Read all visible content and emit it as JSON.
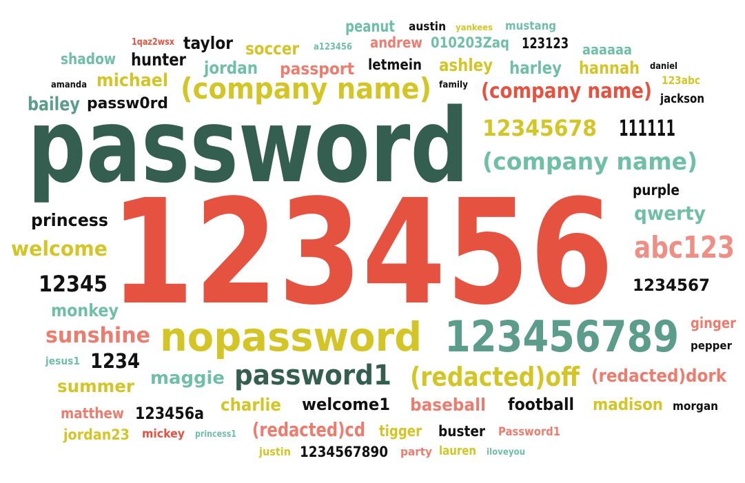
{
  "colors": {
    "dark_green": "#345e4f",
    "teal": "#5b9c8a",
    "mint": "#6fbfa5",
    "red": "#e55240",
    "salmon": "#ec7c6e",
    "pink": "#ee8e84",
    "yellow": "#d4c526",
    "black": "#111111"
  },
  "words": [
    {
      "text": "password",
      "color": "dark_green"
    },
    {
      "text": "123456",
      "color": "red"
    },
    {
      "text": "nopassword",
      "color": "yellow"
    },
    {
      "text": "123456789",
      "color": "teal"
    },
    {
      "text": "password1",
      "color": "dark_green"
    },
    {
      "text": "(company name)",
      "color": "yellow"
    },
    {
      "text": "(company name)",
      "color": "red"
    },
    {
      "text": "(company name)",
      "color": "mint"
    },
    {
      "text": "12345678",
      "color": "yellow"
    },
    {
      "text": "111111",
      "color": "black"
    },
    {
      "text": "abc123",
      "color": "pink"
    },
    {
      "text": "qwerty",
      "color": "mint"
    },
    {
      "text": "purple",
      "color": "black"
    },
    {
      "text": "1234567",
      "color": "black"
    },
    {
      "text": "princess",
      "color": "black"
    },
    {
      "text": "welcome",
      "color": "yellow"
    },
    {
      "text": "12345",
      "color": "black"
    },
    {
      "text": "monkey",
      "color": "mint"
    },
    {
      "text": "sunshine",
      "color": "salmon"
    },
    {
      "text": "1234",
      "color": "black"
    },
    {
      "text": "jesus1",
      "color": "mint"
    },
    {
      "text": "summer",
      "color": "yellow"
    },
    {
      "text": "maggie",
      "color": "mint"
    },
    {
      "text": "(redacted)off",
      "color": "yellow"
    },
    {
      "text": "(redacted)dork",
      "color": "salmon"
    },
    {
      "text": "ginger",
      "color": "salmon"
    },
    {
      "text": "pepper",
      "color": "black"
    },
    {
      "text": "charlie",
      "color": "yellow"
    },
    {
      "text": "welcome1",
      "color": "black"
    },
    {
      "text": "baseball",
      "color": "salmon"
    },
    {
      "text": "football",
      "color": "black"
    },
    {
      "text": "madison",
      "color": "yellow"
    },
    {
      "text": "morgan",
      "color": "black"
    },
    {
      "text": "matthew",
      "color": "salmon"
    },
    {
      "text": "123456a",
      "color": "black"
    },
    {
      "text": "jordan23",
      "color": "yellow"
    },
    {
      "text": "mickey",
      "color": "red"
    },
    {
      "text": "princess1",
      "color": "mint"
    },
    {
      "text": "(redacted)cd",
      "color": "salmon"
    },
    {
      "text": "tigger",
      "color": "yellow"
    },
    {
      "text": "buster",
      "color": "black"
    },
    {
      "text": "Password1",
      "color": "salmon"
    },
    {
      "text": "justin",
      "color": "yellow"
    },
    {
      "text": "1234567890",
      "color": "black"
    },
    {
      "text": "party",
      "color": "salmon"
    },
    {
      "text": "lauren",
      "color": "yellow"
    },
    {
      "text": "iloveyou",
      "color": "mint"
    },
    {
      "text": "peanut",
      "color": "mint"
    },
    {
      "text": "austin",
      "color": "black"
    },
    {
      "text": "yankees",
      "color": "yellow"
    },
    {
      "text": "mustang",
      "color": "mint"
    },
    {
      "text": "1qaz2wsx",
      "color": "red"
    },
    {
      "text": "taylor",
      "color": "black"
    },
    {
      "text": "soccer",
      "color": "yellow"
    },
    {
      "text": "a123456",
      "color": "mint"
    },
    {
      "text": "andrew",
      "color": "salmon"
    },
    {
      "text": "010203Zaq",
      "color": "mint"
    },
    {
      "text": "123123",
      "color": "black"
    },
    {
      "text": "aaaaaa",
      "color": "mint"
    },
    {
      "text": "shadow",
      "color": "mint"
    },
    {
      "text": "hunter",
      "color": "black"
    },
    {
      "text": "jordan",
      "color": "mint"
    },
    {
      "text": "passport",
      "color": "salmon"
    },
    {
      "text": "letmein",
      "color": "black"
    },
    {
      "text": "ashley",
      "color": "yellow"
    },
    {
      "text": "harley",
      "color": "mint"
    },
    {
      "text": "hannah",
      "color": "yellow"
    },
    {
      "text": "daniel",
      "color": "black"
    },
    {
      "text": "amanda",
      "color": "black"
    },
    {
      "text": "michael",
      "color": "yellow"
    },
    {
      "text": "family",
      "color": "black"
    },
    {
      "text": "123abc",
      "color": "yellow"
    },
    {
      "text": "bailey",
      "color": "teal"
    },
    {
      "text": "passw0rd",
      "color": "black"
    },
    {
      "text": "jackson",
      "color": "black"
    }
  ]
}
